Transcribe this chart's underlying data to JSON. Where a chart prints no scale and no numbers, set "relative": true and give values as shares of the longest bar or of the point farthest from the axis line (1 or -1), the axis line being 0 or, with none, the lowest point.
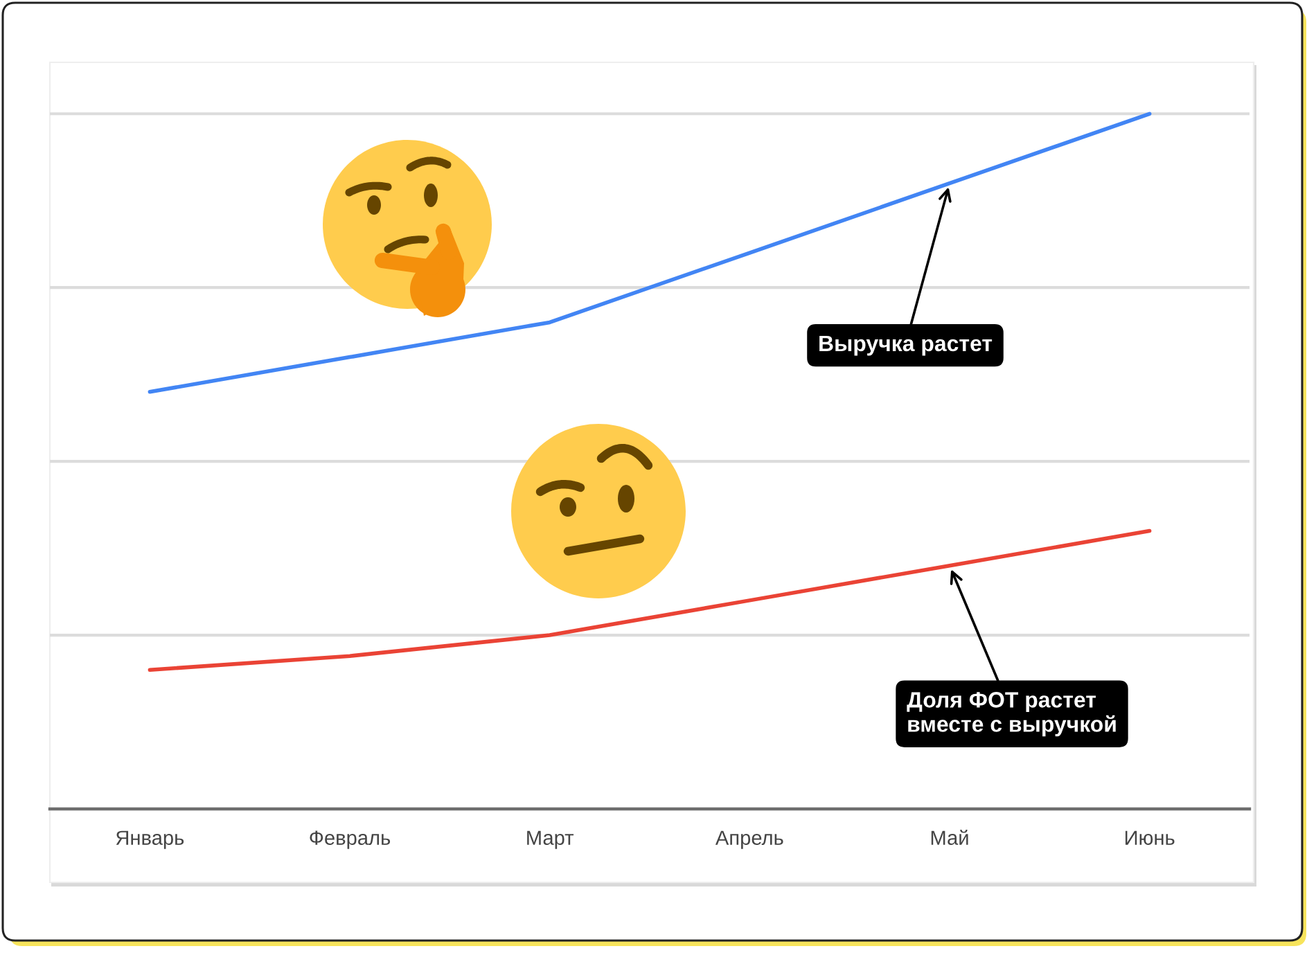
{
  "chart_data": {
    "type": "line",
    "categories": [
      "Январь",
      "Февраль",
      "Март",
      "Апрель",
      "Май",
      "Июнь"
    ],
    "series": [
      {
        "color": "#4285f4",
        "values": [
          0.6,
          0.65,
          0.7,
          0.8,
          0.9,
          1.0
        ]
      },
      {
        "color": "#ea4335",
        "values": [
          0.2,
          0.22,
          0.25,
          0.3,
          0.35,
          0.4
        ]
      }
    ],
    "relative": true,
    "grid": "y",
    "annotations": [
      {
        "text": "Выручка растет",
        "x": "Май",
        "y": 0.9
      },
      {
        "text": "Доля ФОТ растет\nвместе с выручкой",
        "x": "Май",
        "y": 0.35
      }
    ]
  }
}
